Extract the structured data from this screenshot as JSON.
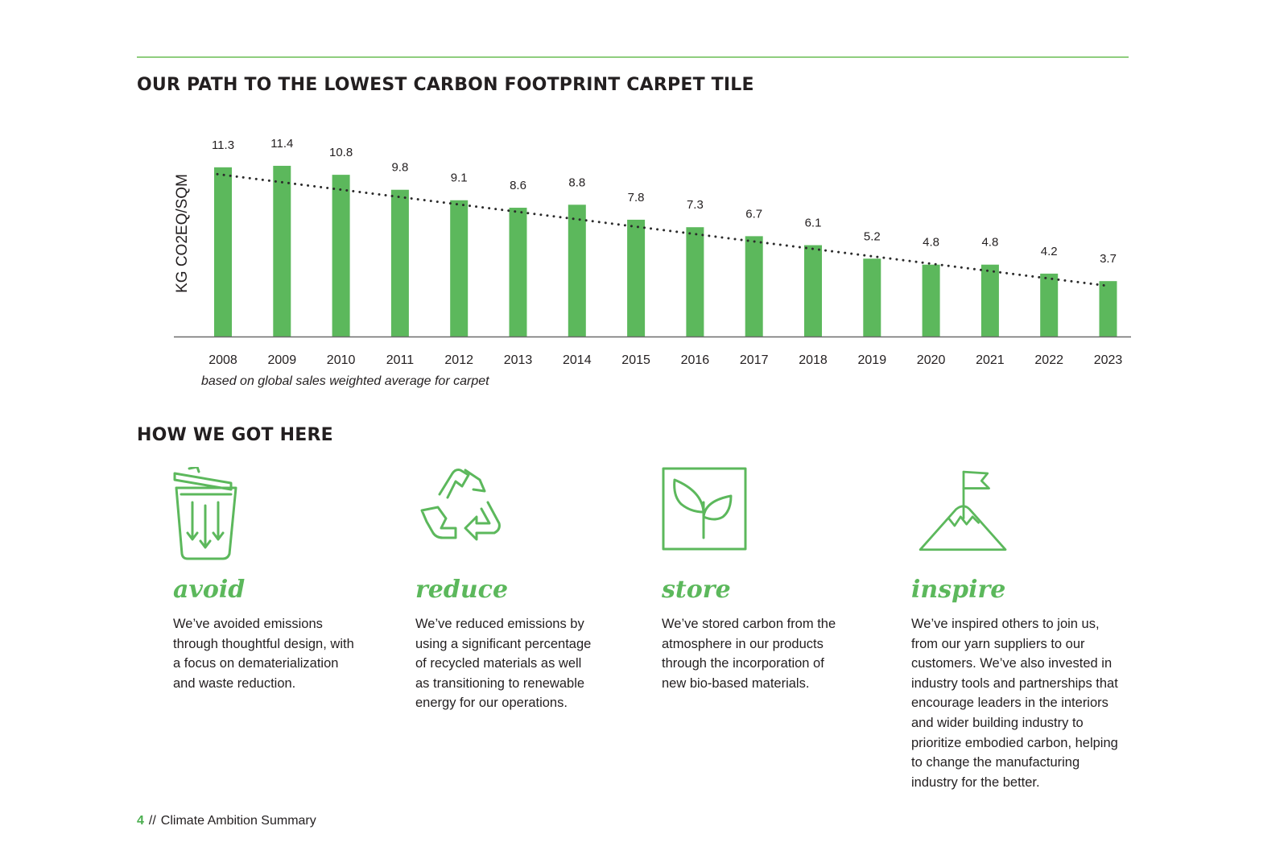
{
  "headings": {
    "chart_title": "OUR PATH TO THE LOWEST CARBON FOOTPRINT CARPET TILE",
    "section_title": "HOW WE GOT HERE"
  },
  "chart_note": "based on global sales weighted average for carpet",
  "colors": {
    "bar": "#5cb85c",
    "accent": "#4caf50",
    "rule": "#8fce7e",
    "text": "#231f20"
  },
  "chart_data": {
    "type": "bar",
    "title": "OUR PATH TO THE LOWEST CARBON FOOTPRINT CARPET TILE",
    "xlabel": "",
    "ylabel": "KG CO2EQ/SQM",
    "categories": [
      "2008",
      "2009",
      "2010",
      "2011",
      "2012",
      "2013",
      "2014",
      "2015",
      "2016",
      "2017",
      "2018",
      "2019",
      "2020",
      "2021",
      "2022",
      "2023"
    ],
    "values": [
      11.3,
      11.4,
      10.8,
      9.8,
      9.1,
      8.6,
      8.8,
      7.8,
      7.3,
      6.7,
      6.1,
      5.2,
      4.8,
      4.8,
      4.2,
      3.7
    ],
    "trendline": {
      "style": "dotted",
      "from": 11.65,
      "to": 3.65
    },
    "ylim": [
      0,
      11.4
    ],
    "grid": false,
    "legend": "none"
  },
  "cards": [
    {
      "id": "avoid",
      "icon": "trash-can-icon",
      "title": "avoid",
      "body": "We’ve avoided emissions\nthrough thoughtful design, with\na focus on dematerialization\nand waste reduction."
    },
    {
      "id": "reduce",
      "icon": "recycle-icon",
      "title": "reduce",
      "body": "We’ve reduced emissions by\nusing a significant percentage\nof recycled materials as well\nas transitioning to renewable\nenergy for our operations."
    },
    {
      "id": "store",
      "icon": "sprout-icon",
      "title": "store",
      "body": "We’ve stored carbon from the\natmosphere in our products\nthrough the incorporation of\nnew bio-based materials."
    },
    {
      "id": "inspire",
      "icon": "mountain-flag-icon",
      "title": "inspire",
      "body": "We’ve inspired others to join us,\nfrom our yarn suppliers to our\ncustomers. We’ve also invested in\nindustry tools and partnerships that\nencourage leaders in the interiors\nand wider building industry to\nprioritize embodied carbon, helping\nto change the manufacturing\nindustry for the better."
    }
  ],
  "footer": {
    "page_number": "4",
    "separator": "//",
    "text": "Climate Ambition Summary"
  }
}
